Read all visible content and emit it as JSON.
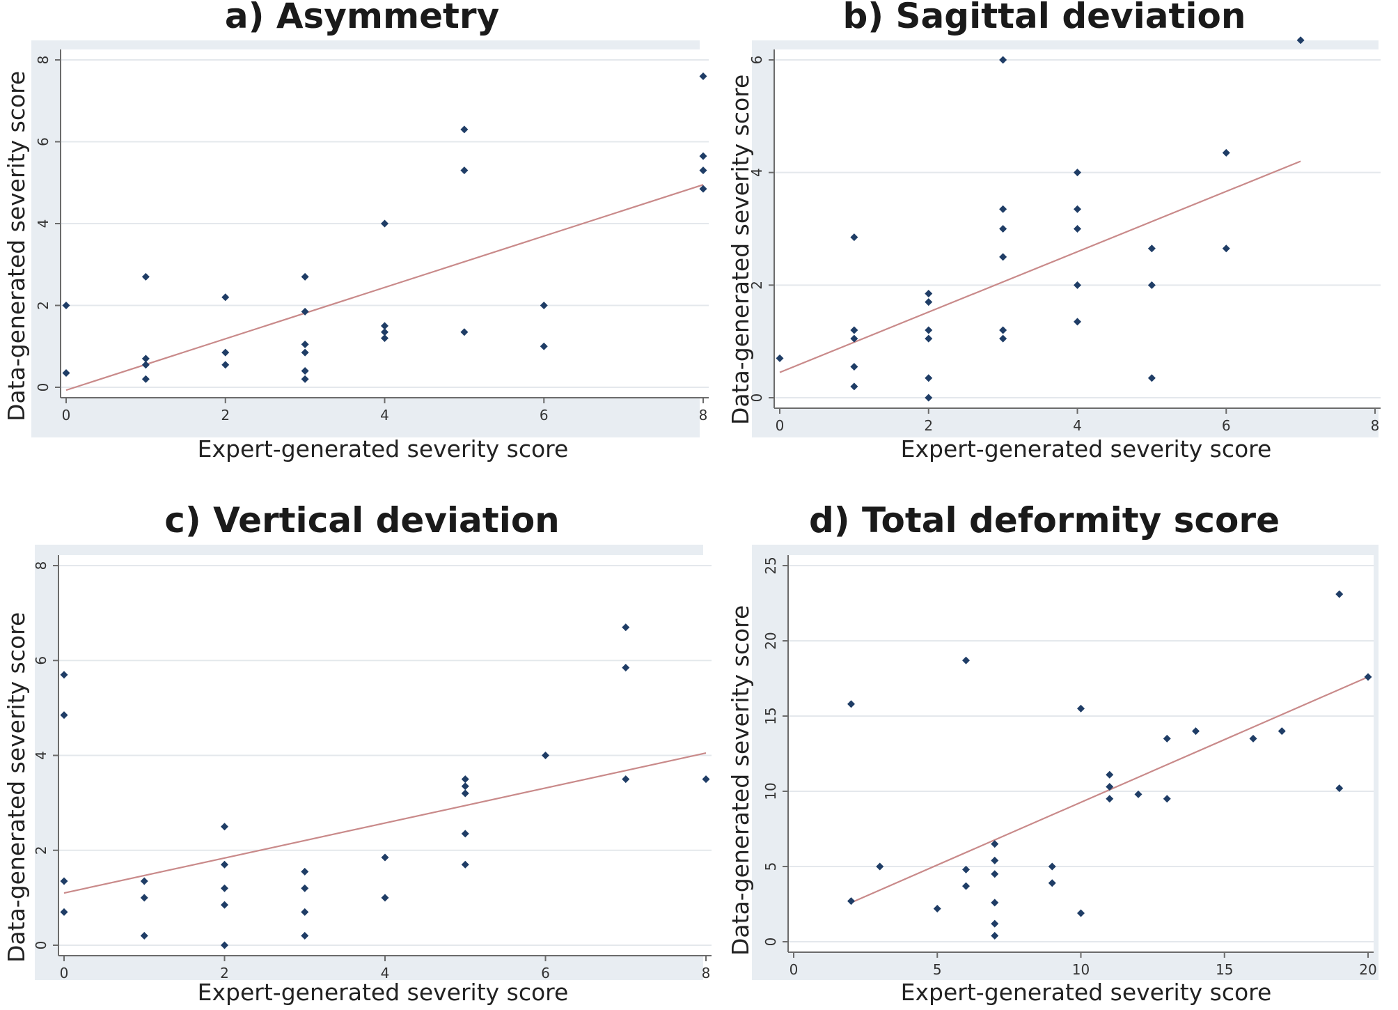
{
  "chart_data": [
    {
      "id": "a",
      "type": "scatter",
      "title": "a) Asymmetry",
      "xlabel": "Expert-generated severity score",
      "ylabel": "Data-generated severity score",
      "xlim": [
        0,
        8
      ],
      "ylim": [
        0,
        8
      ],
      "xticks": [
        0,
        2,
        4,
        6,
        8
      ],
      "yticks": [
        0,
        2,
        4,
        6,
        8
      ],
      "grid": true,
      "points": [
        [
          0,
          2.0
        ],
        [
          0,
          0.35
        ],
        [
          1,
          2.7
        ],
        [
          1,
          0.7
        ],
        [
          1,
          0.55
        ],
        [
          1,
          0.2
        ],
        [
          2,
          2.2
        ],
        [
          2,
          0.85
        ],
        [
          2,
          0.55
        ],
        [
          3,
          2.7
        ],
        [
          3,
          1.85
        ],
        [
          3,
          1.05
        ],
        [
          3,
          0.85
        ],
        [
          3,
          0.4
        ],
        [
          3,
          0.2
        ],
        [
          4,
          4.0
        ],
        [
          4,
          1.5
        ],
        [
          4,
          1.35
        ],
        [
          4,
          1.2
        ],
        [
          5,
          6.3
        ],
        [
          5,
          5.3
        ],
        [
          5,
          1.35
        ],
        [
          6,
          2.0
        ],
        [
          6,
          1.0
        ],
        [
          8,
          7.6
        ],
        [
          8,
          5.65
        ],
        [
          8,
          5.3
        ],
        [
          8,
          4.85
        ]
      ],
      "fit_line": {
        "x": [
          0,
          8
        ],
        "y": [
          -0.07,
          4.95
        ]
      }
    },
    {
      "id": "b",
      "type": "scatter",
      "title": "b) Sagittal deviation",
      "xlabel": "Expert-generated severity score",
      "ylabel": "Data-generated severity score",
      "xlim": [
        0,
        8
      ],
      "ylim": [
        0,
        6
      ],
      "xticks": [
        0,
        2,
        4,
        6,
        8
      ],
      "yticks": [
        0,
        2,
        4,
        6
      ],
      "grid": true,
      "points": [
        [
          0,
          0.7
        ],
        [
          1,
          2.85
        ],
        [
          1,
          1.2
        ],
        [
          1,
          1.05
        ],
        [
          1,
          0.55
        ],
        [
          1,
          0.2
        ],
        [
          2,
          1.85
        ],
        [
          2,
          1.7
        ],
        [
          2,
          1.2
        ],
        [
          2,
          1.05
        ],
        [
          2,
          0.35
        ],
        [
          2,
          0.0
        ],
        [
          3,
          6.0
        ],
        [
          3,
          3.35
        ],
        [
          3,
          3.0
        ],
        [
          3,
          2.5
        ],
        [
          3,
          1.2
        ],
        [
          3,
          1.05
        ],
        [
          4,
          4.0
        ],
        [
          4,
          3.35
        ],
        [
          4,
          3.0
        ],
        [
          4,
          2.0
        ],
        [
          4,
          1.35
        ],
        [
          5,
          2.65
        ],
        [
          5,
          2.0
        ],
        [
          5,
          0.35
        ],
        [
          6,
          4.35
        ],
        [
          6,
          2.65
        ],
        [
          7,
          6.35
        ]
      ],
      "fit_line": {
        "x": [
          0,
          7
        ],
        "y": [
          0.45,
          4.2
        ]
      }
    },
    {
      "id": "c",
      "type": "scatter",
      "title": "c) Vertical deviation",
      "xlabel": "Expert-generated severity score",
      "ylabel": "Data-generated severity score",
      "xlim": [
        0,
        8
      ],
      "ylim": [
        0,
        8
      ],
      "xticks": [
        0,
        2,
        4,
        6,
        8
      ],
      "yticks": [
        0,
        2,
        4,
        6,
        8
      ],
      "grid": true,
      "points": [
        [
          0,
          5.7
        ],
        [
          0,
          4.85
        ],
        [
          0,
          1.35
        ],
        [
          0,
          0.7
        ],
        [
          1,
          1.35
        ],
        [
          1,
          1.0
        ],
        [
          1,
          0.2
        ],
        [
          2,
          2.5
        ],
        [
          2,
          1.7
        ],
        [
          2,
          1.2
        ],
        [
          2,
          0.85
        ],
        [
          2,
          0.0
        ],
        [
          3,
          1.55
        ],
        [
          3,
          1.2
        ],
        [
          3,
          0.7
        ],
        [
          3,
          0.2
        ],
        [
          4,
          1.85
        ],
        [
          4,
          1.0
        ],
        [
          5,
          3.5
        ],
        [
          5,
          3.35
        ],
        [
          5,
          3.2
        ],
        [
          5,
          2.35
        ],
        [
          5,
          1.7
        ],
        [
          6,
          4.0
        ],
        [
          7,
          6.7
        ],
        [
          7,
          5.85
        ],
        [
          7,
          3.5
        ],
        [
          8,
          3.5
        ]
      ],
      "fit_line": {
        "x": [
          0,
          8
        ],
        "y": [
          1.1,
          4.05
        ]
      }
    },
    {
      "id": "d",
      "type": "scatter",
      "title": "d) Total deformity score",
      "xlabel": "Expert-generated severity score",
      "ylabel": "Data-generated severity score",
      "xlim": [
        0,
        20
      ],
      "ylim": [
        0,
        25
      ],
      "xticks": [
        0,
        5,
        10,
        15,
        20
      ],
      "yticks": [
        0,
        5,
        10,
        15,
        20,
        25
      ],
      "grid": true,
      "points": [
        [
          2,
          15.8
        ],
        [
          2,
          2.7
        ],
        [
          3,
          5.0
        ],
        [
          5,
          2.2
        ],
        [
          6,
          18.7
        ],
        [
          6,
          4.8
        ],
        [
          6,
          3.7
        ],
        [
          7,
          6.5
        ],
        [
          7,
          5.4
        ],
        [
          7,
          4.5
        ],
        [
          7,
          2.6
        ],
        [
          7,
          1.2
        ],
        [
          7,
          0.4
        ],
        [
          9,
          5.0
        ],
        [
          9,
          3.9
        ],
        [
          10,
          15.5
        ],
        [
          10,
          1.9
        ],
        [
          11,
          11.1
        ],
        [
          11,
          10.3
        ],
        [
          11,
          9.5
        ],
        [
          12,
          9.8
        ],
        [
          13,
          13.5
        ],
        [
          13,
          9.5
        ],
        [
          14,
          14.0
        ],
        [
          16,
          13.5
        ],
        [
          17,
          14.0
        ],
        [
          19,
          23.1
        ],
        [
          19,
          10.2
        ],
        [
          20,
          17.6
        ]
      ],
      "fit_line": {
        "x": [
          2,
          20
        ],
        "y": [
          2.6,
          17.6
        ]
      }
    }
  ],
  "colors": {
    "point": "#1f3d66",
    "fit_line": "#c98a8a",
    "plot_background": "#ffffff",
    "outer_background": "#e8edf2",
    "grid": "#e4e8ec",
    "axis": "#6b6b6b"
  }
}
